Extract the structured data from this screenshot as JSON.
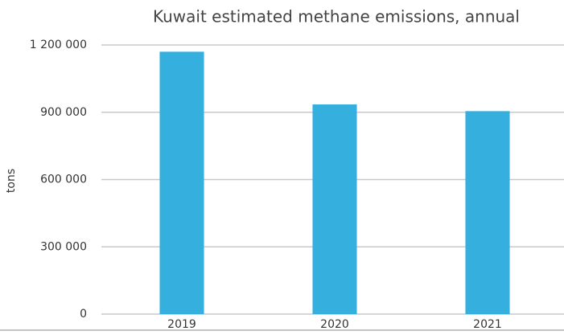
{
  "chart_data": {
    "type": "bar",
    "title": "Kuwait estimated methane emissions, annual",
    "y_label": "tons",
    "categories": [
      "2019",
      "2020",
      "2021"
    ],
    "values": [
      1170000,
      935000,
      905000
    ],
    "color": "#35b0de",
    "ylim": [
      0,
      1200000
    ],
    "yticks": [
      0,
      {
        "value": 300000,
        "label": "300 000"
      },
      {
        "value": 600000,
        "label": "600 000"
      },
      {
        "value": 900000,
        "label": "900 000"
      },
      {
        "value": 1200000,
        "label": "1 200 000"
      }
    ],
    "grid": true
  }
}
